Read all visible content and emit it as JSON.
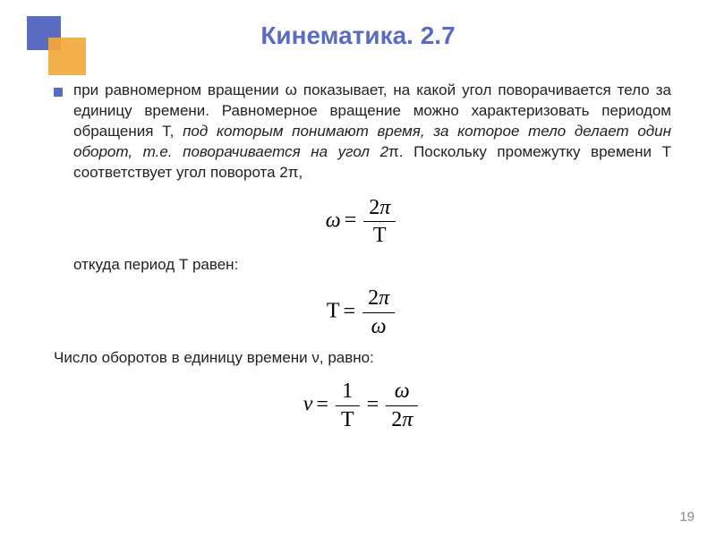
{
  "title": "Кинематика. 2.7",
  "bullet_text_parts": {
    "p1": "при равномерном вращении ω показывает, на какой угол поворачивается тело за единицу времени. Равномерное вращение можно характеризовать периодом обращения Т, ",
    "p2": "под которым понимают время, за которое тело делает один оборот, т.е. поворачивается на угол 2",
    "p3": ". Поскольку промежутку времени Т соответствует угол поворота 2",
    "p4": ","
  },
  "pi": "π",
  "line_period": "откуда период Т равен:",
  "line_freq": "Число оборотов в единицу времени ν, равно:",
  "formula1": {
    "lhs": "ω",
    "num": "2π",
    "den": "T"
  },
  "formula2": {
    "lhs": "T",
    "num": "2π",
    "den": "ω"
  },
  "formula3": {
    "lhs": "ν",
    "num1": "1",
    "den1": "T",
    "num2": "ω",
    "den2": "2π"
  },
  "page_number": "19",
  "colors": {
    "accent": "#5b6cc0",
    "accent2": "#f2a93c",
    "text": "#222222",
    "pagenum": "#888888",
    "background": "#ffffff"
  },
  "typography": {
    "title_fontsize": 28,
    "body_fontsize": 17,
    "formula_fontsize": 24,
    "title_font": "Verdana",
    "body_font": "Tahoma",
    "formula_font": "Times New Roman"
  }
}
